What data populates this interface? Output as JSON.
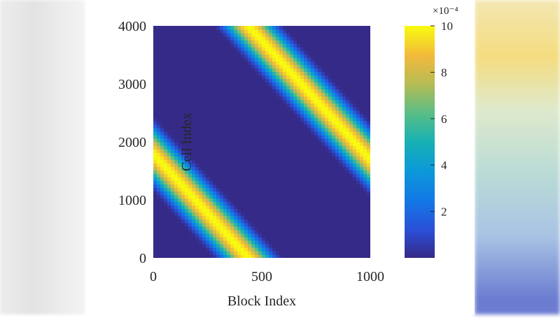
{
  "chart_data": {
    "type": "heatmap",
    "title": "",
    "xlabel": "Block Index",
    "ylabel": "Cell Index",
    "xlim": [
      0,
      1000
    ],
    "ylim": [
      0,
      4000
    ],
    "xticks": [
      0,
      500,
      1000
    ],
    "yticks": [
      0,
      1000,
      2000,
      3000,
      4000
    ],
    "colorbar": {
      "range": [
        0,
        10
      ],
      "ticks": [
        2,
        4,
        6,
        8,
        10
      ],
      "exponent_label": "×10⁻⁴",
      "colormap": "parula"
    },
    "bands": [
      {
        "name": "lower-left band",
        "center_at_x0": 1800,
        "center_slope_per_block": -4.1,
        "peak": 10,
        "width_cells": 1400
      },
      {
        "name": "upper-right band",
        "center_at_x0": 5800,
        "center_slope_per_block": -4.1,
        "peak": 10,
        "width_cells": 1400
      }
    ]
  }
}
